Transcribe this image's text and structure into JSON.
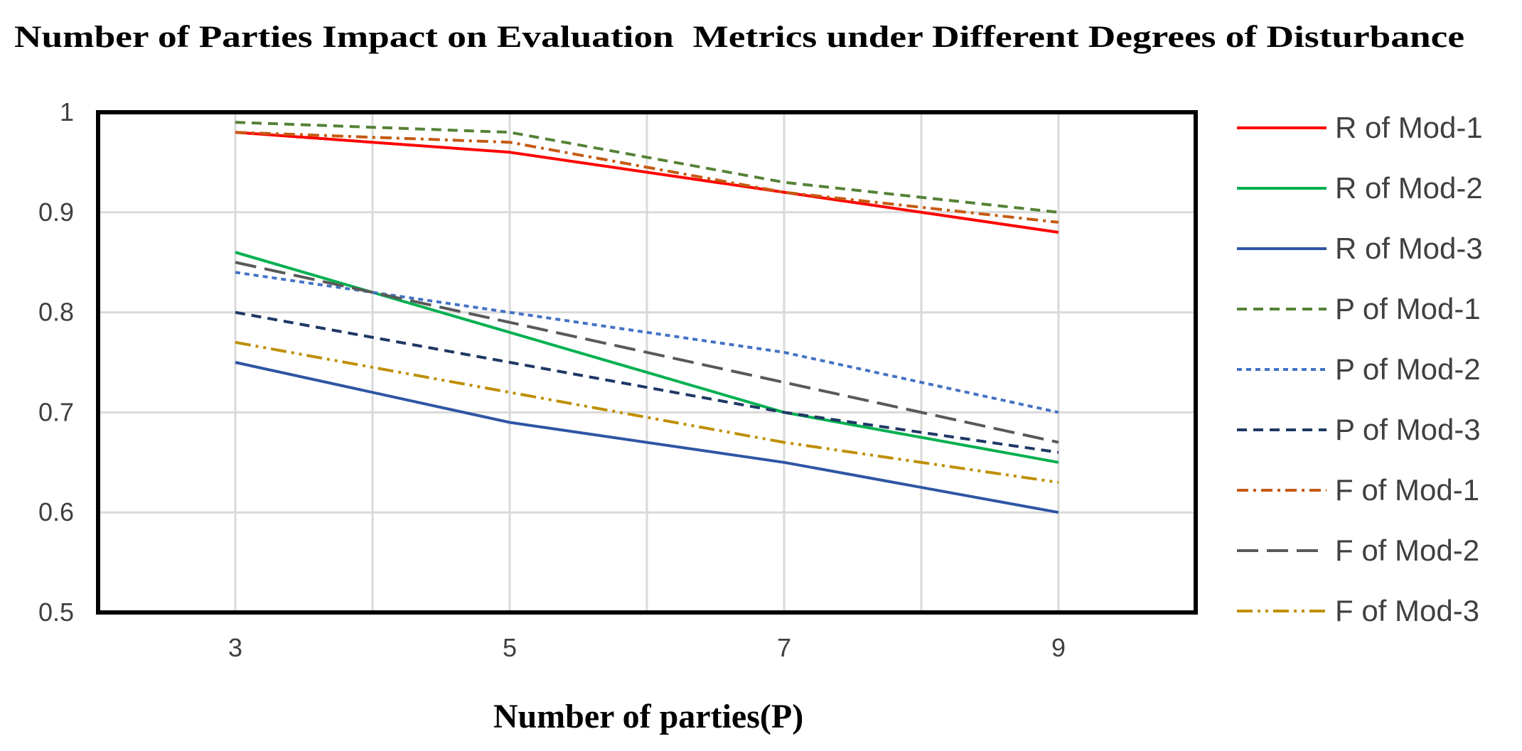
{
  "chart_data": {
    "type": "line",
    "title": "Number of Parties Impact on Evaluation  Metrics under Different Degrees of Disturbance",
    "xlabel": "Number of parties(P)",
    "ylabel": "",
    "x": [
      3,
      5,
      7,
      9
    ],
    "xlim": [
      2,
      10
    ],
    "ylim": [
      0.5,
      1
    ],
    "x_ticks": [
      "3",
      "5",
      "7",
      "9"
    ],
    "y_ticks": [
      "0.5",
      "0.6",
      "0.7",
      "0.8",
      "0.9",
      "1"
    ],
    "grid": true,
    "legend_position": "right",
    "series": [
      {
        "name": "R of Mod-1",
        "values": [
          0.98,
          0.96,
          0.92,
          0.88
        ],
        "color": "#ff0000",
        "dash": "solid"
      },
      {
        "name": "R of Mod-2",
        "values": [
          0.86,
          0.78,
          0.7,
          0.65
        ],
        "color": "#00b050",
        "dash": "solid"
      },
      {
        "name": "R of Mod-3",
        "values": [
          0.75,
          0.69,
          0.65,
          0.6
        ],
        "color": "#2f55a4",
        "dash": "solid"
      },
      {
        "name": "P of Mod-1",
        "values": [
          0.99,
          0.98,
          0.93,
          0.9
        ],
        "color": "#548235",
        "dash": "dash"
      },
      {
        "name": "P of Mod-2",
        "values": [
          0.84,
          0.8,
          0.76,
          0.7
        ],
        "color": "#4472c4",
        "dash": "shortdash"
      },
      {
        "name": "P of Mod-3",
        "values": [
          0.8,
          0.75,
          0.7,
          0.66
        ],
        "color": "#1f3864",
        "dash": "dash"
      },
      {
        "name": "F of Mod-1",
        "values": [
          0.98,
          0.97,
          0.92,
          0.89
        ],
        "color": "#c55a11",
        "dash": "dashdot"
      },
      {
        "name": "F of Mod-2",
        "values": [
          0.85,
          0.79,
          0.73,
          0.67
        ],
        "color": "#595959",
        "dash": "longdash"
      },
      {
        "name": "F of Mod-3",
        "values": [
          0.77,
          0.72,
          0.67,
          0.63
        ],
        "color": "#bf8f00",
        "dash": "dashdotdot"
      }
    ]
  }
}
